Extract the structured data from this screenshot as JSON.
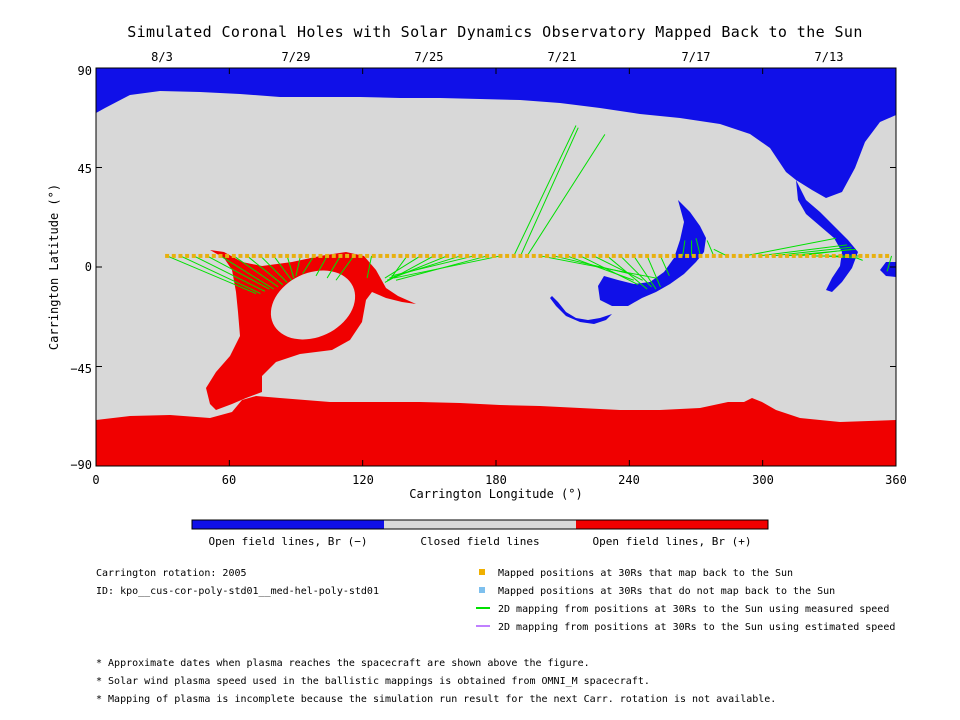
{
  "chart_data": {
    "type": "map",
    "title": "Simulated Coronal Holes with Solar Dynamics Observatory Mapped Back to the Sun",
    "xlabel": "Carrington Longitude (°)",
    "ylabel": "Carrington Latitude (°)",
    "xlim": [
      0,
      360
    ],
    "ylim": [
      -90,
      90
    ],
    "x_ticks": [
      "0",
      "60",
      "120",
      "180",
      "240",
      "300",
      "360"
    ],
    "y_ticks": [
      "90",
      "45",
      "0",
      "−45",
      "−90"
    ],
    "top_dates": [
      {
        "label": "8/3",
        "lon": 30
      },
      {
        "label": "7/29",
        "lon": 90
      },
      {
        "label": "7/25",
        "lon": 150
      },
      {
        "label": "7/21",
        "lon": 210
      },
      {
        "label": "7/17",
        "lon": 270
      },
      {
        "label": "7/13",
        "lon": 330
      }
    ],
    "colorbar": [
      {
        "label": "Open field lines, Br (−)",
        "color": "#1010e8"
      },
      {
        "label": "Closed field lines",
        "color": "#d8d8d8"
      },
      {
        "label": "Open field lines, Br (+)",
        "color": "#f00000"
      }
    ],
    "mapped_points": {
      "latitude": 5,
      "color": "#e8b010",
      "lon_start": 32,
      "lon_end": 358,
      "lon_step": 3
    },
    "mapping_lines": [
      {
        "from": [
          32,
          5
        ],
        "to": [
          72,
          -12
        ]
      },
      {
        "from": [
          38,
          5
        ],
        "to": [
          74,
          -12
        ]
      },
      {
        "from": [
          44,
          5
        ],
        "to": [
          76,
          -11
        ]
      },
      {
        "from": [
          50,
          5
        ],
        "to": [
          78,
          -10
        ]
      },
      {
        "from": [
          56,
          5
        ],
        "to": [
          80,
          -10
        ]
      },
      {
        "from": [
          62,
          5
        ],
        "to": [
          82,
          -9
        ]
      },
      {
        "from": [
          68,
          5
        ],
        "to": [
          84,
          -8
        ]
      },
      {
        "from": [
          74,
          5
        ],
        "to": [
          86,
          -7
        ]
      },
      {
        "from": [
          80,
          5
        ],
        "to": [
          88,
          -6
        ]
      },
      {
        "from": [
          86,
          5
        ],
        "to": [
          89,
          -5
        ]
      },
      {
        "from": [
          92,
          5
        ],
        "to": [
          90,
          -4
        ]
      },
      {
        "from": [
          98,
          5
        ],
        "to": [
          93,
          -3
        ]
      },
      {
        "from": [
          104,
          5
        ],
        "to": [
          99,
          -4
        ]
      },
      {
        "from": [
          110,
          5
        ],
        "to": [
          104,
          -5
        ]
      },
      {
        "from": [
          116,
          5
        ],
        "to": [
          108,
          -6
        ]
      },
      {
        "from": [
          124,
          5
        ],
        "to": [
          122,
          -5
        ]
      },
      {
        "from": [
          140,
          5
        ],
        "to": [
          132,
          -6
        ]
      },
      {
        "from": [
          146,
          5
        ],
        "to": [
          130,
          -5
        ]
      },
      {
        "from": [
          152,
          5
        ],
        "to": [
          130,
          -7
        ]
      },
      {
        "from": [
          158,
          5
        ],
        "to": [
          131,
          -6
        ]
      },
      {
        "from": [
          164,
          5
        ],
        "to": [
          132,
          -5
        ]
      },
      {
        "from": [
          170,
          5
        ],
        "to": [
          133,
          -4
        ]
      },
      {
        "from": [
          176,
          5
        ],
        "to": [
          135,
          -6
        ]
      },
      {
        "from": [
          182,
          5
        ],
        "to": [
          134,
          -5
        ]
      },
      {
        "from": [
          188,
          5
        ],
        "to": [
          216,
          64
        ]
      },
      {
        "from": [
          191,
          5
        ],
        "to": [
          217,
          63
        ]
      },
      {
        "from": [
          194,
          5
        ],
        "to": [
          229,
          60
        ]
      },
      {
        "from": [
          200,
          5
        ],
        "to": [
          252,
          -5
        ]
      },
      {
        "from": [
          206,
          5
        ],
        "to": [
          240,
          -3
        ]
      },
      {
        "from": [
          212,
          5
        ],
        "to": [
          242,
          -6
        ]
      },
      {
        "from": [
          218,
          5
        ],
        "to": [
          244,
          -8
        ]
      },
      {
        "from": [
          224,
          5
        ],
        "to": [
          246,
          -6
        ]
      },
      {
        "from": [
          230,
          5
        ],
        "to": [
          248,
          -10
        ]
      },
      {
        "from": [
          236,
          5
        ],
        "to": [
          250,
          -9
        ]
      },
      {
        "from": [
          242,
          5
        ],
        "to": [
          252,
          -10
        ]
      },
      {
        "from": [
          248,
          5
        ],
        "to": [
          254,
          -9
        ]
      },
      {
        "from": [
          254,
          5
        ],
        "to": [
          258,
          -4
        ]
      },
      {
        "from": [
          260,
          5
        ],
        "to": [
          261,
          5
        ]
      },
      {
        "from": [
          264,
          5
        ],
        "to": [
          265,
          12
        ]
      },
      {
        "from": [
          268,
          5
        ],
        "to": [
          268,
          12
        ]
      },
      {
        "from": [
          272,
          5
        ],
        "to": [
          270,
          13
        ]
      },
      {
        "from": [
          278,
          5
        ],
        "to": [
          275,
          12
        ]
      },
      {
        "from": [
          284,
          5
        ],
        "to": [
          278,
          8
        ]
      },
      {
        "from": [
          292,
          5
        ],
        "to": [
          333,
          13
        ]
      },
      {
        "from": [
          298,
          5
        ],
        "to": [
          338,
          10
        ]
      },
      {
        "from": [
          304,
          5
        ],
        "to": [
          340,
          9
        ]
      },
      {
        "from": [
          310,
          5
        ],
        "to": [
          342,
          8
        ]
      },
      {
        "from": [
          316,
          5
        ],
        "to": [
          340,
          8
        ]
      },
      {
        "from": [
          322,
          5
        ],
        "to": [
          344,
          5
        ]
      },
      {
        "from": [
          328,
          5
        ],
        "to": [
          343,
          4
        ]
      },
      {
        "from": [
          340,
          5
        ],
        "to": [
          345,
          3
        ]
      },
      {
        "from": [
          358,
          5
        ],
        "to": [
          356,
          -2
        ]
      }
    ]
  },
  "legend": {
    "rotation": "Carrington rotation: 2005",
    "id": "ID: kpo__cus-cor-poly-std01__med-hel-poly-std01",
    "items": [
      {
        "label": "Mapped positions at 30Rs that map back to the Sun",
        "color": "#f0b000",
        "marker": "square"
      },
      {
        "label": "Mapped positions at 30Rs that do not map back to the Sun",
        "color": "#7ec0ee",
        "marker": "square"
      },
      {
        "label": "2D mapping from positions at 30Rs to the Sun using measured speed",
        "color": "#00e000",
        "marker": "line"
      },
      {
        "label": "2D mapping from positions at 30Rs to the Sun using estimated speed",
        "color": "#c080ff",
        "marker": "line"
      }
    ]
  },
  "footnotes": [
    "* Approximate dates when plasma reaches the spacecraft are shown above the figure.",
    "* Solar wind plasma speed used in the ballistic mappings is obtained from OMNI_M spacecraft.",
    "* Mapping of plasma is incomplete because the simulation run result for the next Carr. rotation is not available."
  ]
}
